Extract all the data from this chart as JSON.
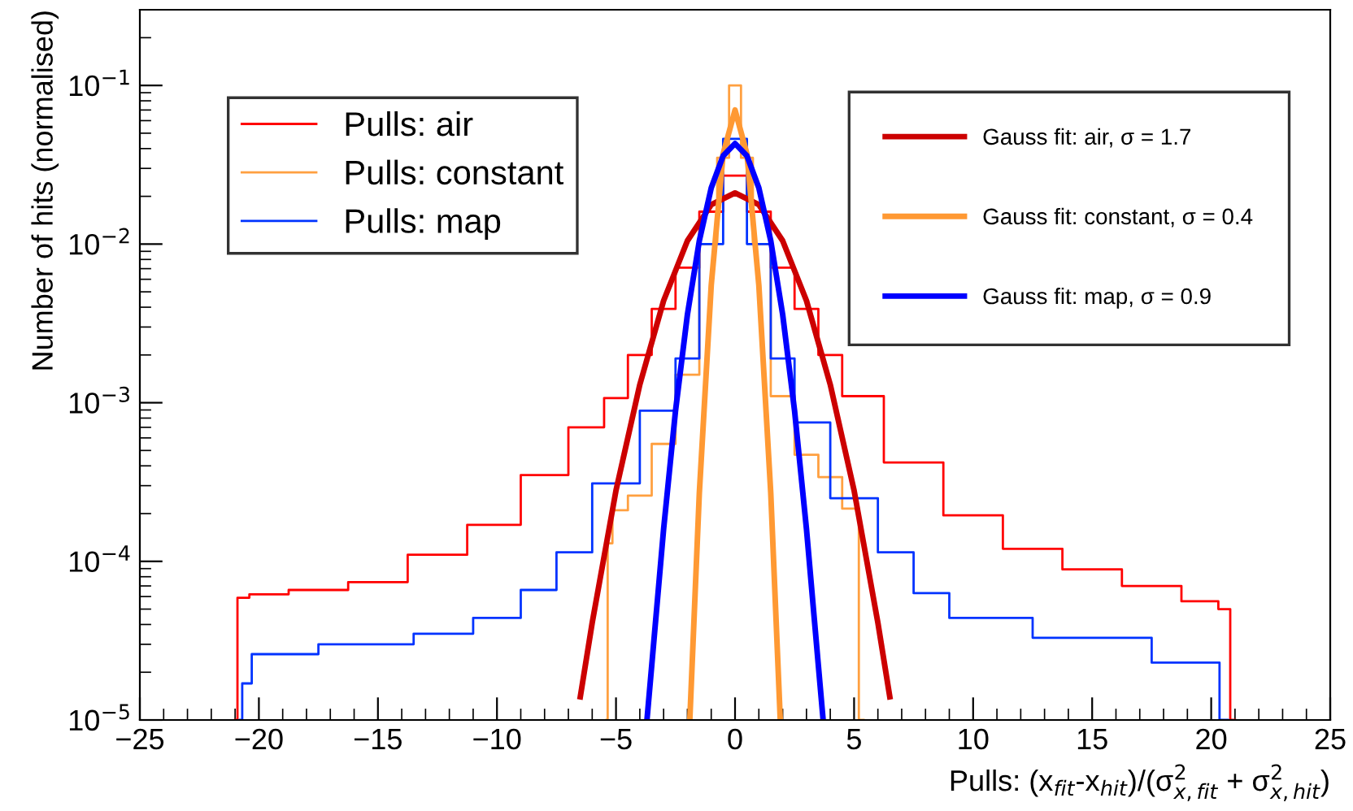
{
  "chart_data": {
    "type": "step",
    "xlabel": "Pulls: (x$_{fit}$-x$_{hit}$)/(σ$^{2}$$_{x,fit}$ + σ$^{2}$$_{x,hit}$)",
    "ylabel": "Number of hits (normalised)",
    "log": "y",
    "grid": false,
    "legend": "top left",
    "xlim": [
      -25,
      25
    ],
    "xticks": [
      -25,
      -20,
      -15,
      -10,
      -5,
      0,
      5,
      10,
      15,
      20,
      25
    ],
    "ylim": [
      1e-05,
      0.3
    ],
    "yticks": [
      {
        "value": 1e-05,
        "label": "10$^{−5}$"
      },
      {
        "value": 0.0001,
        "label": "10$^{−4}$"
      },
      {
        "value": 0.001,
        "label": "10$^{−3}$"
      },
      {
        "value": 0.01,
        "label": "10$^{−2}$"
      },
      {
        "value": 0.1,
        "label": "10$^{−1}$"
      }
    ],
    "series": [
      {
        "name": "Pulls: air",
        "color": "#ff0000",
        "x": [
          -21,
          -20.8,
          -20,
          -17.5,
          -15,
          -12.5,
          -10,
          -8,
          -6,
          -5,
          -4,
          -3,
          -2,
          -1,
          0,
          1,
          2,
          3,
          4,
          5,
          7.5,
          10,
          12.5,
          15,
          17.5,
          20,
          20.6,
          21
        ],
        "values": [
          1e-05,
          5.9e-05,
          6.2e-05,
          6.6e-05,
          7.4e-05,
          0.00011,
          0.00017,
          0.00035,
          0.0007,
          0.00107,
          0.002,
          0.0039,
          0.0071,
          0.016,
          0.027,
          0.016,
          0.0071,
          0.0039,
          0.002,
          0.0011,
          0.00042,
          0.000195,
          0.00012,
          8.9e-05,
          7e-05,
          5.6e-05,
          5e-05,
          1e-05
        ]
      },
      {
        "name": "Pulls: constant",
        "color": "#ffa040",
        "x": [
          -5.4,
          -5.3,
          -5,
          -4,
          -3,
          -2,
          -1,
          -0.5,
          0,
          0.5,
          1,
          2,
          3,
          4,
          5,
          5.4
        ],
        "values": [
          1e-05,
          0.00013,
          0.00021,
          0.00026,
          0.00055,
          0.0015,
          0.01,
          0.035,
          0.1,
          0.035,
          0.01,
          0.0011,
          0.00047,
          0.00034,
          0.000215,
          1e-05
        ]
      },
      {
        "name": "Pulls: map",
        "color": "#0033ff",
        "x": [
          -20.8,
          -20.6,
          -20,
          -15,
          -12,
          -10,
          -8,
          -7,
          -5,
          -3,
          -2,
          -1,
          0,
          1,
          2,
          3,
          5,
          7,
          8,
          10,
          15,
          20,
          20.7
        ],
        "values": [
          1e-05,
          1.7e-05,
          2.6e-05,
          3e-05,
          3.5e-05,
          4.4e-05,
          6.6e-05,
          0.000114,
          0.00031,
          0.00089,
          0.0019,
          0.01,
          0.046,
          0.01,
          0.0019,
          0.00075,
          0.00025,
          0.000114,
          6.3e-05,
          4.4e-05,
          3.3e-05,
          2.3e-05,
          1e-05
        ]
      },
      {
        "name": "Gauss fit: air, σ = 1.7",
        "type": "line",
        "color": "#cc0000",
        "x": [
          -6.5,
          -6,
          -5,
          -4,
          -3,
          -2,
          -1,
          0,
          1,
          2,
          3,
          4,
          5,
          6,
          6.5
        ],
        "values": [
          1.4e-05,
          4.1e-05,
          0.00028,
          0.0013,
          0.0044,
          0.0105,
          0.0177,
          0.021,
          0.0177,
          0.0105,
          0.0044,
          0.0013,
          0.00028,
          4.1e-05,
          1.4e-05
        ]
      },
      {
        "name": "Gauss fit: constant, σ = 0.4",
        "type": "line",
        "color": "#ff9933",
        "x": [
          -1.9,
          -1.5,
          -1,
          -0.5,
          0,
          0.5,
          1,
          1.5,
          1.9
        ],
        "values": [
          1e-05,
          0.00027,
          0.0055,
          0.037,
          0.07,
          0.037,
          0.0055,
          0.00027,
          1e-05
        ]
      },
      {
        "name": "Gauss fit: map, σ = 0.9",
        "type": "line",
        "color": "#0000ff",
        "x": [
          -3.7,
          -3.5,
          -3,
          -2.5,
          -2,
          -1.5,
          -1,
          -0.5,
          0,
          0.5,
          1,
          1.5,
          2,
          2.5,
          3,
          3.5,
          3.7
        ],
        "values": [
          1e-05,
          2.2e-05,
          0.00016,
          0.00089,
          0.0036,
          0.0105,
          0.0226,
          0.036,
          0.043,
          0.036,
          0.0226,
          0.0105,
          0.0036,
          0.00089,
          0.00016,
          2.2e-05,
          1e-05
        ]
      }
    ]
  }
}
